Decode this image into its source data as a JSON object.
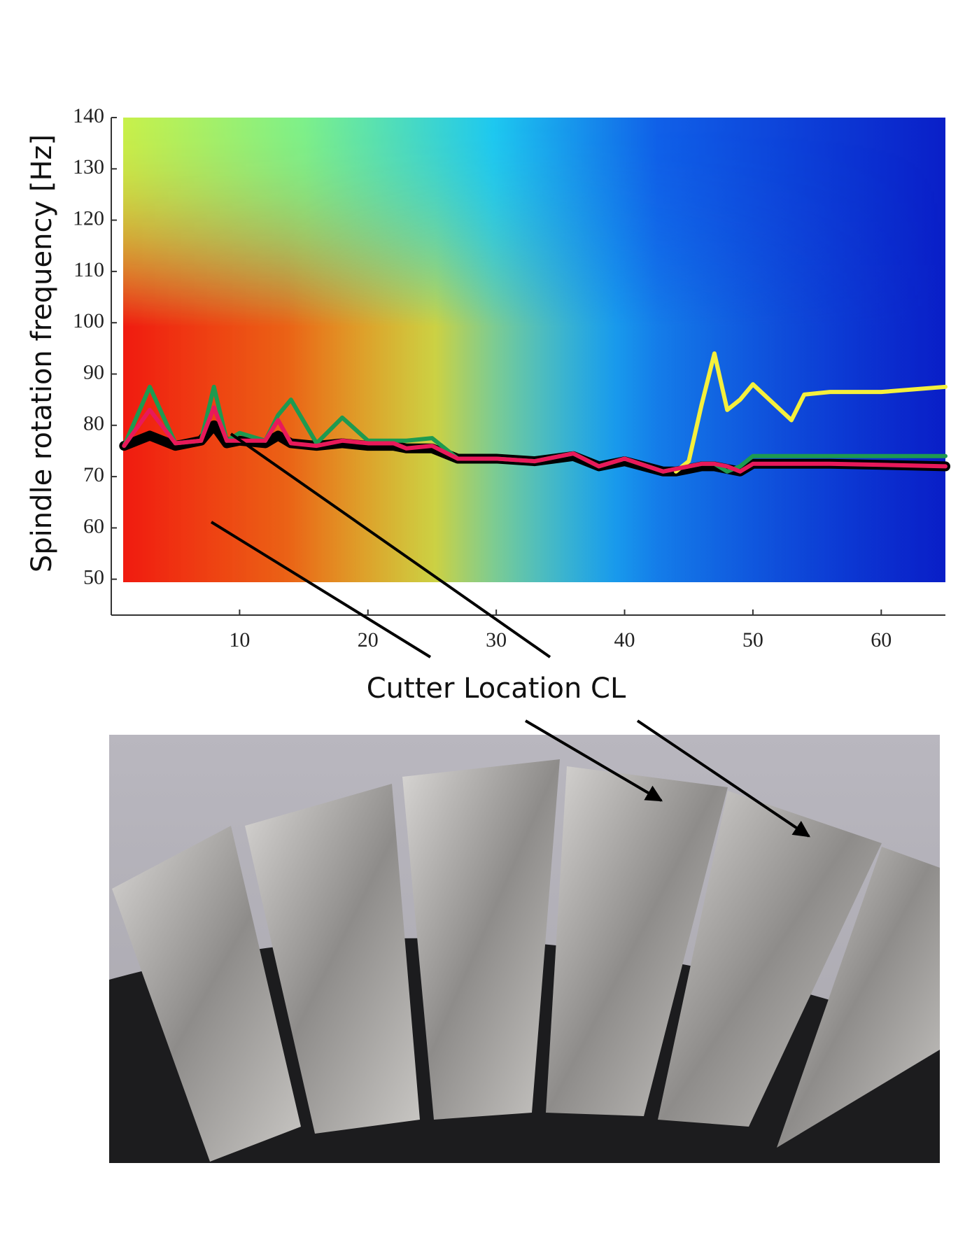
{
  "chart_data": {
    "type": "line",
    "ylabel": "Spindle rotation frequency [Hz]",
    "xlabel": "Cutter Location CL",
    "x": [
      1,
      3,
      5,
      7,
      8,
      9,
      10,
      12,
      13,
      14,
      16,
      18,
      20,
      22,
      23,
      25,
      27,
      30,
      33,
      36,
      38,
      40,
      43,
      44,
      45,
      46,
      47,
      48,
      49,
      50,
      53,
      54,
      56,
      60,
      65
    ],
    "series": [
      {
        "color": "#000000",
        "values": [
          76,
          78,
          76,
          77,
          80,
          76.5,
          77,
          76.5,
          78,
          76.5,
          76,
          76.5,
          76,
          76,
          75.5,
          75.5,
          73.5,
          73.5,
          73,
          74,
          72,
          73,
          71,
          71,
          71.5,
          72,
          72,
          71.5,
          71,
          72.5,
          72.5,
          72.5,
          72.5,
          72.3,
          72
        ]
      },
      {
        "color": "#f5f03c",
        "values": [
          null,
          null,
          null,
          null,
          null,
          null,
          null,
          null,
          null,
          null,
          null,
          null,
          null,
          null,
          null,
          null,
          null,
          null,
          null,
          null,
          null,
          null,
          null,
          71,
          73,
          84,
          94,
          83,
          85,
          88,
          81,
          86,
          86.5,
          86.5,
          87.5
        ]
      },
      {
        "color": "#1e9a50",
        "values": [
          76,
          87.5,
          76.5,
          77,
          87.5,
          77,
          78.5,
          77,
          82,
          85,
          76.5,
          81.5,
          77,
          77,
          77,
          77.5,
          73.5,
          73.5,
          73,
          74.5,
          72,
          73.5,
          71,
          71.5,
          72,
          72.5,
          72.5,
          71,
          72,
          74,
          74,
          74,
          74,
          74,
          74
        ]
      },
      {
        "color": "#e8195a",
        "values": [
          76,
          83,
          76.5,
          77,
          83.5,
          77,
          77,
          77,
          81,
          76.5,
          76,
          77,
          76.5,
          76.5,
          75.5,
          76,
          73.5,
          73.5,
          73,
          74.5,
          72,
          73.5,
          71,
          71.5,
          72,
          72.5,
          72.5,
          72,
          71,
          72.5,
          72.5,
          72.5,
          72.5,
          72.3,
          72
        ]
      }
    ],
    "xlim": [
      0,
      65
    ],
    "ylim": [
      43,
      140
    ],
    "xticks": [
      10,
      20,
      30,
      40,
      50,
      60
    ],
    "yticks": [
      50,
      60,
      70,
      80,
      90,
      100,
      110,
      120,
      130,
      140
    ]
  }
}
